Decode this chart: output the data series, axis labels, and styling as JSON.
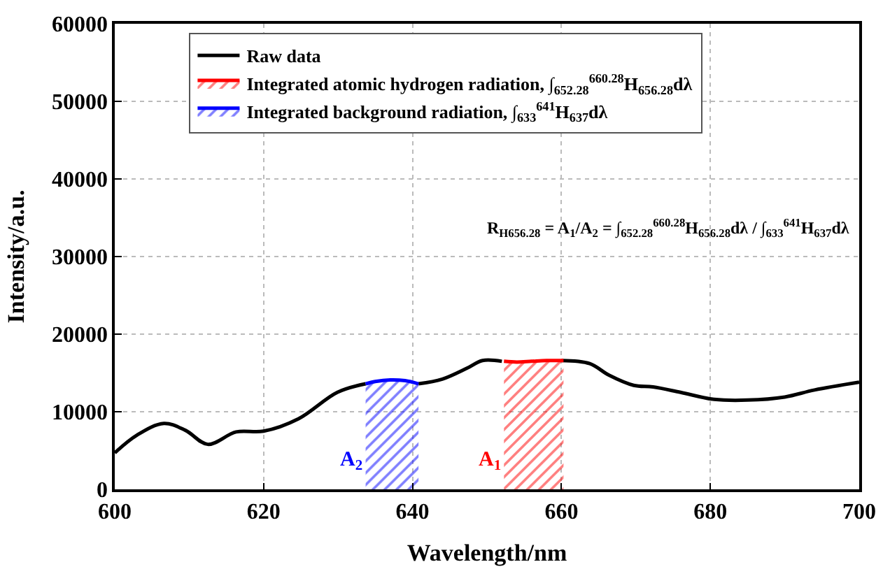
{
  "chart_data": {
    "type": "line",
    "xlabel": "Wavelength/nm",
    "ylabel": "Intensity/a.u.",
    "xlim": [
      600,
      700
    ],
    "xticks": [
      600,
      620,
      640,
      660,
      680,
      700
    ],
    "ylim": [
      0,
      60000
    ],
    "yticks": [
      0,
      10000,
      20000,
      30000,
      40000,
      50000,
      60000
    ],
    "grid": true,
    "legend": "top",
    "line_style": "solid",
    "marker": "none",
    "series": [
      {
        "name": "Raw data",
        "color": "#000000",
        "x": [
          600,
          603,
          606.6,
          609.5,
          612.5,
          616.3,
          620,
          624.7,
          629.9,
          633.7,
          637.6,
          640.8,
          644,
          647.3,
          649.4,
          652,
          656,
          660,
          663.8,
          666.4,
          669.7,
          672.3,
          676,
          680.5,
          685,
          690,
          694,
          700
        ],
        "values": [
          4700,
          7000,
          8500,
          7600,
          5800,
          7400,
          7500,
          9100,
          12500,
          13600,
          null,
          13600,
          14200,
          15600,
          16600,
          16500,
          null,
          16600,
          16200,
          14700,
          13400,
          13200,
          12500,
          11600,
          11500,
          11900,
          12800,
          13800
        ]
      },
      {
        "name": "Integrated atomic hydrogen radiation, ∫$_{652.28}$$^{660.28}$H$_{656.28}$dλ",
        "type": "area",
        "color": "#ff0000",
        "x": [
          652.28,
          654,
          656,
          658,
          660.28
        ],
        "values": [
          16500,
          16400,
          16500,
          16600,
          16600
        ]
      },
      {
        "name": "Integrated background radiation, ∫$_{633}$$^{641}$H$_{637}$dλ",
        "type": "area",
        "color": "#0000ff",
        "x": [
          633.7,
          635,
          637,
          639,
          640.8
        ],
        "values": [
          13600,
          13900,
          14100,
          14000,
          13600
        ]
      }
    ],
    "annotations": [
      "R$_{H656.28}$ = A$_{1}$/A$_{2}$ = ∫$_{652.28}$$^{660.28}$H$_{656.28}$dλ / ∫$_{633}$$^{641}$H$_{637}$dλ",
      "A$_{1}$",
      "A$_{2}$"
    ]
  }
}
